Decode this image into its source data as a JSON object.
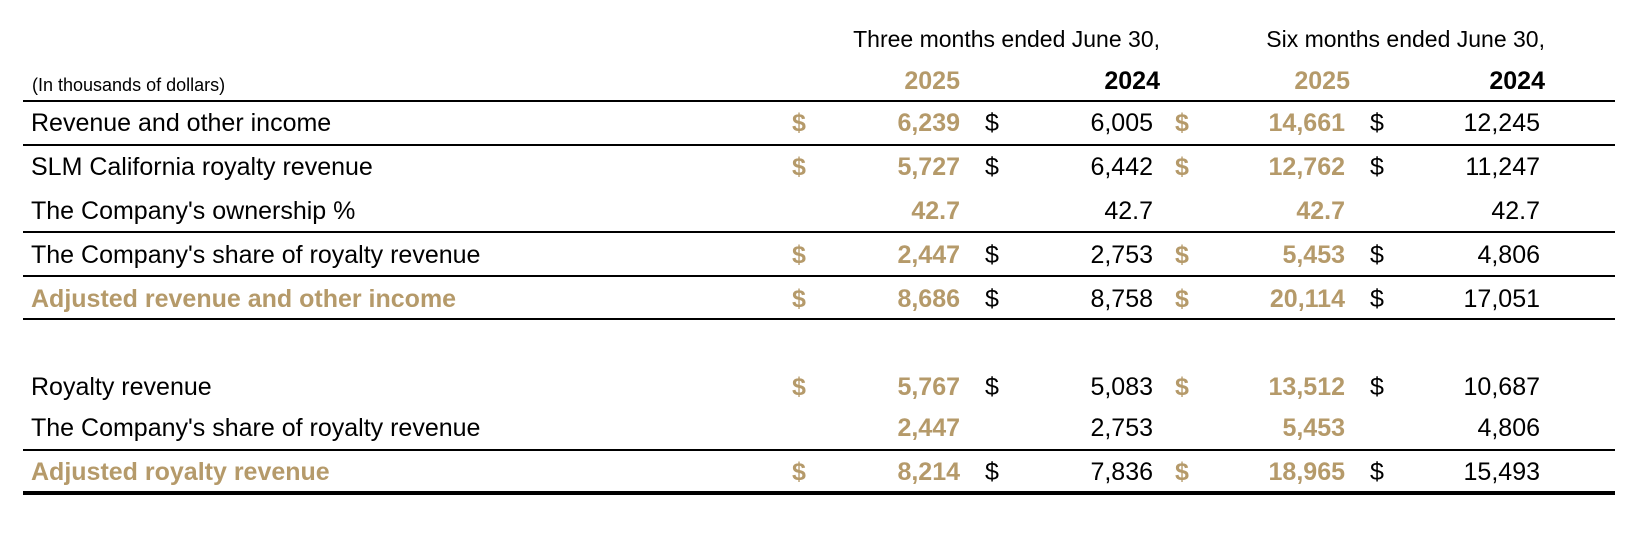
{
  "header": {
    "units": "(In thousands of dollars)",
    "three_months": "Three months ended June 30,",
    "six_months": "Six months ended June 30,",
    "years": [
      "2025",
      "2024",
      "2025",
      "2024"
    ]
  },
  "colors": {
    "accent": "#b59a6a",
    "text": "#000000"
  },
  "currency_symbol": "$",
  "rows": [
    {
      "label": "Revenue and other income",
      "values": [
        "6,239",
        "6,005",
        "14,661",
        "12,245"
      ],
      "dollar": true,
      "highlight": false
    },
    {
      "label": "SLM California royalty revenue",
      "values": [
        "5,727",
        "6,442",
        "12,762",
        "11,247"
      ],
      "dollar": true,
      "highlight": false
    },
    {
      "label": "The Company's ownership %",
      "values": [
        "42.7",
        "42.7",
        "42.7",
        "42.7"
      ],
      "dollar": false,
      "highlight": false
    },
    {
      "label": "The Company's share of royalty revenue",
      "values": [
        "2,447",
        "2,753",
        "5,453",
        "4,806"
      ],
      "dollar": true,
      "highlight": false
    },
    {
      "label": "Adjusted revenue and other income",
      "values": [
        "8,686",
        "8,758",
        "20,114",
        "17,051"
      ],
      "dollar": true,
      "highlight": true
    },
    {
      "label": "Royalty revenue",
      "values": [
        "5,767",
        "5,083",
        "13,512",
        "10,687"
      ],
      "dollar": true,
      "highlight": false
    },
    {
      "label": "The Company's share of royalty revenue",
      "values": [
        "2,447",
        "2,753",
        "5,453",
        "4,806"
      ],
      "dollar": false,
      "highlight": false
    },
    {
      "label": "Adjusted royalty revenue",
      "values": [
        "8,214",
        "7,836",
        "18,965",
        "15,493"
      ],
      "dollar": true,
      "highlight": true
    }
  ]
}
